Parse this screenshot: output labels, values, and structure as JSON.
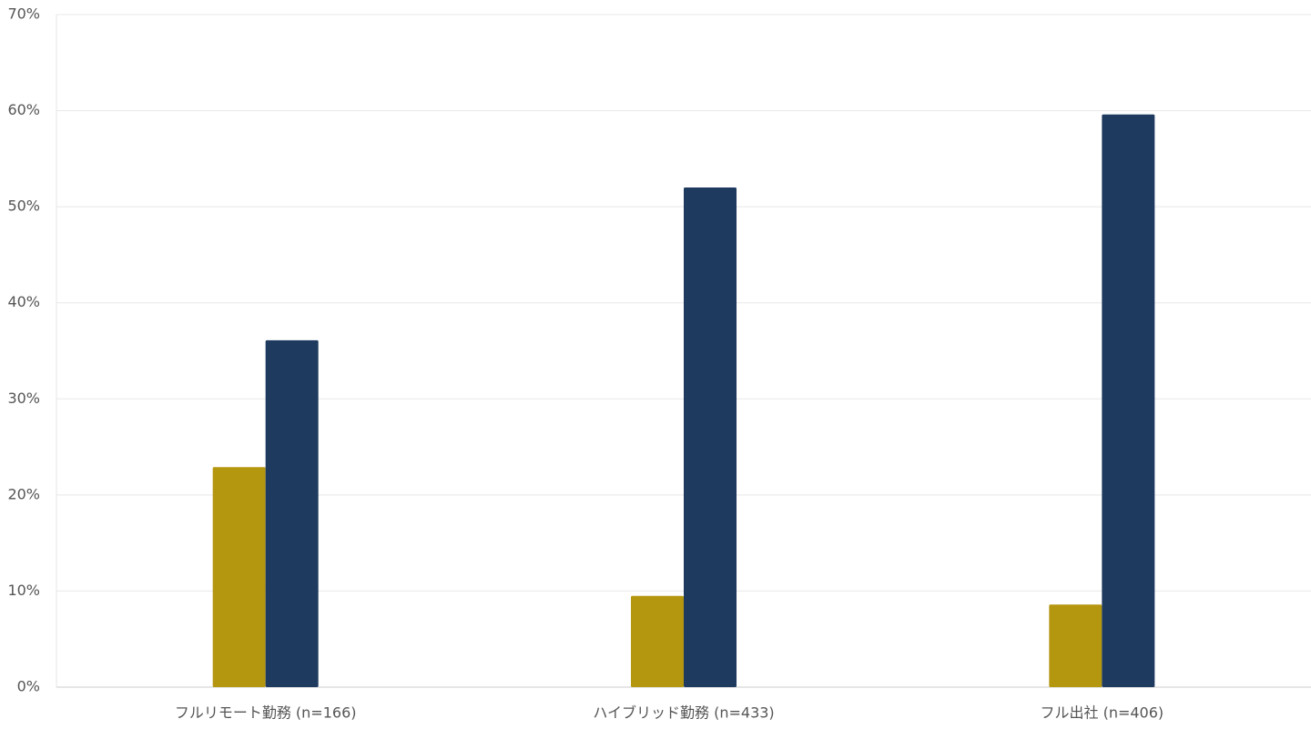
{
  "chart_data": {
    "type": "bar",
    "categories": [
      "フルリモート勤務 (n=166)",
      "ハイブリッド勤務 (n=433)",
      "フル出社 (n=406)"
    ],
    "series": [
      {
        "color": "#b5960f",
        "values": [
          22.9,
          9.5,
          8.6
        ]
      },
      {
        "color": "#1f3a5f",
        "values": [
          36.1,
          52.0,
          59.6
        ]
      }
    ],
    "ylim": [
      0,
      70
    ],
    "yticks": [
      {
        "value": 0,
        "label": "0%"
      },
      {
        "value": 10,
        "label": "10%"
      },
      {
        "value": 20,
        "label": "20%"
      },
      {
        "value": 30,
        "label": "30%"
      },
      {
        "value": 40,
        "label": "40%"
      },
      {
        "value": 50,
        "label": "50%"
      },
      {
        "value": 60,
        "label": "60%"
      },
      {
        "value": 70,
        "label": "70%"
      }
    ],
    "grid": true
  }
}
